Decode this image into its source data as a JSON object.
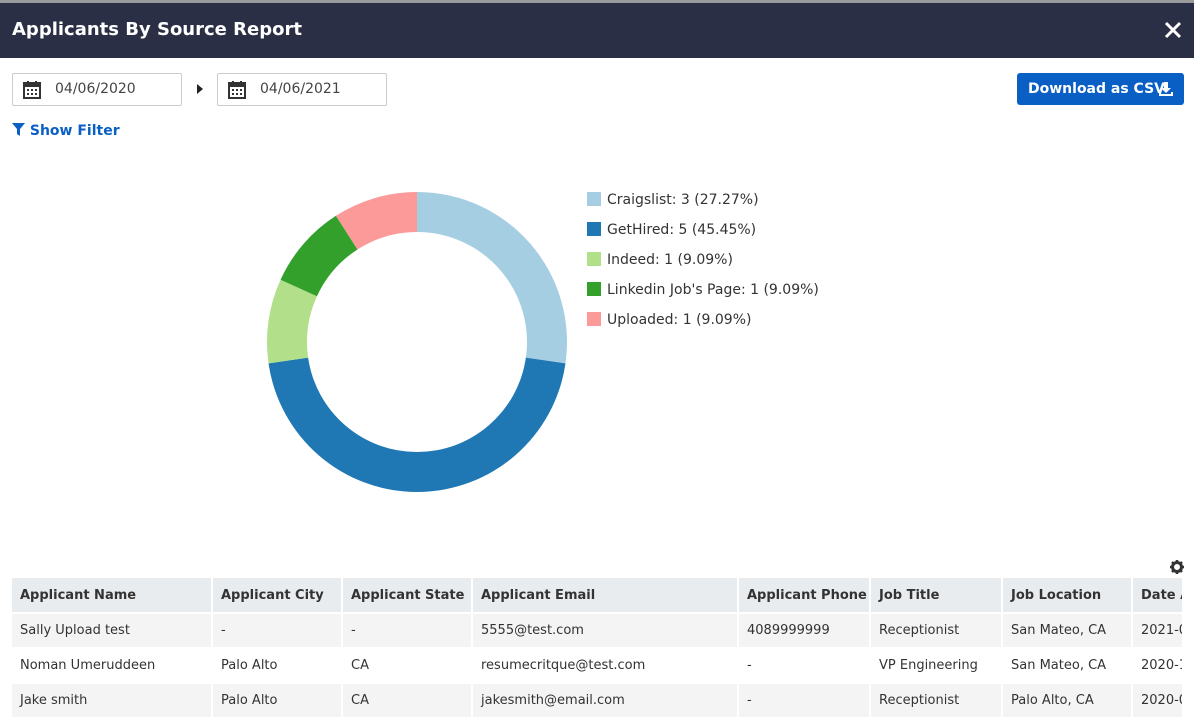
{
  "header": {
    "title": "Applicants By Source Report"
  },
  "filters": {
    "start_date": "04/06/2020",
    "end_date": "04/06/2021",
    "download_button": "Download as CSV",
    "show_filter": "Show Filter"
  },
  "chart_data": {
    "type": "pie",
    "donut": true,
    "value_labels": [
      "Craigslist: 3 (27.27%)",
      "GetHired: 5 (45.45%)",
      "Indeed: 1 (9.09%)",
      "Linkedin Job's Page: 1 (9.09%)",
      "Uploaded: 1 (9.09%)"
    ],
    "values": [
      3,
      5,
      1,
      1,
      1
    ],
    "colors": [
      "#a6cee3",
      "#1f78b4",
      "#b2df8a",
      "#33a02c",
      "#fb9a99"
    ],
    "legend": "right"
  },
  "table": {
    "columns": [
      "Applicant Name",
      "Applicant City",
      "Applicant State",
      "Applicant Email",
      "Applicant Phone",
      "Job Title",
      "Job Location",
      "Date A"
    ],
    "rows": [
      [
        "Sally Upload test",
        "-",
        "-",
        "5555@test.com",
        "4089999999",
        "Receptionist",
        "San Mateo, CA",
        "2021-0"
      ],
      [
        "Noman Umeruddeen",
        "Palo Alto",
        "CA",
        "resumecritque@test.com",
        "-",
        "VP Engineering",
        "San Mateo, CA",
        "2020-1"
      ],
      [
        "Jake smith",
        "Palo Alto",
        "CA",
        "jakesmith@email.com",
        "-",
        "Receptionist",
        "Palo Alto, CA",
        "2020-0"
      ]
    ]
  }
}
